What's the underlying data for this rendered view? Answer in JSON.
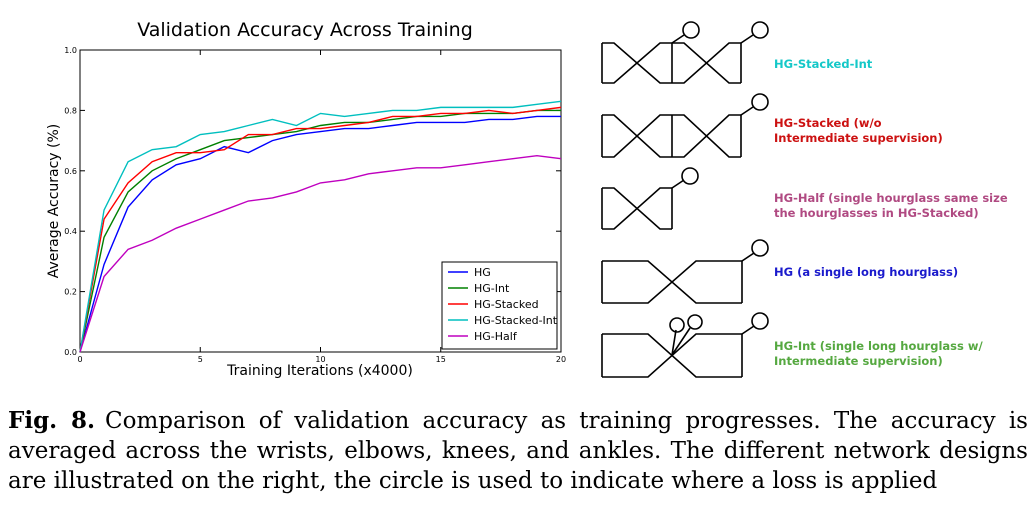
{
  "chart_data": {
    "type": "line",
    "title": "Validation Accuracy Across Training",
    "xlabel": "Training Iterations (x4000)",
    "ylabel": "Average Accuracy (%)",
    "xlim": [
      0,
      20
    ],
    "ylim": [
      0.0,
      1.0
    ],
    "x_ticks": [
      "0",
      "5",
      "10",
      "15",
      "20"
    ],
    "y_ticks": [
      "0.0",
      "0.2",
      "0.4",
      "0.6",
      "0.8",
      "1.0"
    ],
    "legend_position": "bottom-right",
    "x": [
      0,
      1,
      2,
      3,
      4,
      5,
      6,
      7,
      8,
      9,
      10,
      11,
      12,
      13,
      14,
      15,
      16,
      17,
      18,
      19,
      20
    ],
    "series": [
      {
        "name": "HG",
        "color": "#0000ff",
        "values": [
          0.0,
          0.29,
          0.48,
          0.57,
          0.62,
          0.64,
          0.68,
          0.66,
          0.7,
          0.72,
          0.73,
          0.74,
          0.74,
          0.75,
          0.76,
          0.76,
          0.76,
          0.77,
          0.77,
          0.78,
          0.78
        ]
      },
      {
        "name": "HG-Int",
        "color": "#008000",
        "values": [
          0.0,
          0.38,
          0.53,
          0.6,
          0.64,
          0.67,
          0.7,
          0.71,
          0.72,
          0.73,
          0.75,
          0.76,
          0.76,
          0.77,
          0.78,
          0.78,
          0.79,
          0.79,
          0.79,
          0.8,
          0.8
        ]
      },
      {
        "name": "HG-Stacked",
        "color": "#ff0000",
        "values": [
          0.0,
          0.44,
          0.56,
          0.63,
          0.66,
          0.66,
          0.67,
          0.72,
          0.72,
          0.74,
          0.74,
          0.75,
          0.76,
          0.78,
          0.78,
          0.79,
          0.79,
          0.8,
          0.79,
          0.8,
          0.81
        ]
      },
      {
        "name": "HG-Stacked-Int",
        "color": "#00bfbf",
        "values": [
          0.0,
          0.47,
          0.63,
          0.67,
          0.68,
          0.72,
          0.73,
          0.75,
          0.77,
          0.75,
          0.79,
          0.78,
          0.79,
          0.8,
          0.8,
          0.81,
          0.81,
          0.81,
          0.81,
          0.82,
          0.83
        ]
      },
      {
        "name": "HG-Half",
        "color": "#bf00bf",
        "values": [
          0.0,
          0.25,
          0.34,
          0.37,
          0.41,
          0.44,
          0.47,
          0.5,
          0.51,
          0.53,
          0.56,
          0.57,
          0.59,
          0.6,
          0.61,
          0.61,
          0.62,
          0.63,
          0.64,
          0.65,
          0.64
        ]
      }
    ]
  },
  "designs": [
    {
      "name": "HG-Stacked-Int",
      "label_lines": [
        "HG-Stacked-Int"
      ],
      "color": "#14c8c8"
    },
    {
      "name": "HG-Stacked",
      "label_lines": [
        "HG-Stacked (w/o",
        "Intermediate supervision)"
      ],
      "color": "#cc1111"
    },
    {
      "name": "HG-Half",
      "label_lines": [
        "HG-Half (single hourglass same size",
        "the hourglasses in HG-Stacked)"
      ],
      "color": "#b04a82"
    },
    {
      "name": "HG",
      "label_lines": [
        "HG (a single long hourglass)"
      ],
      "color": "#1a1acc"
    },
    {
      "name": "HG-Int",
      "label_lines": [
        "HG-Int (single long hourglass w/",
        "Intermediate supervision)"
      ],
      "color": "#55a840"
    }
  ],
  "caption": {
    "label": "Fig. 8.",
    "text": "Comparison of validation accuracy as training progresses. The accuracy is averaged across the wrists, elbows, knees, and ankles. The different network designs are illustrated on the right, the circle is used to indicate where a loss is applied"
  }
}
